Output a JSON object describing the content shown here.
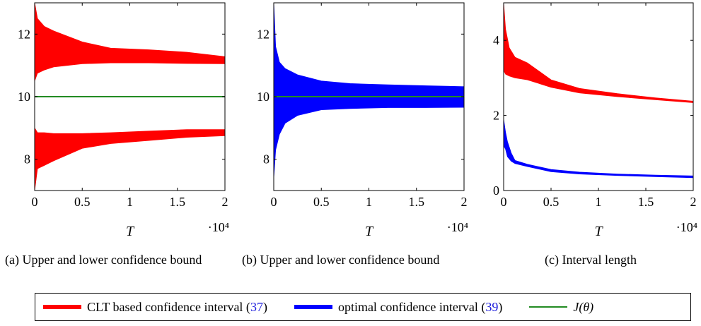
{
  "chart_data": [
    {
      "type": "area",
      "caption": "(a) Upper and lower confidence bound",
      "xlabel": "T",
      "x_multiplier": "·10⁴",
      "xlim": [
        0,
        20000
      ],
      "ylim": [
        7,
        13
      ],
      "xticks": [
        0,
        5000,
        10000,
        15000,
        20000
      ],
      "xtick_labels": [
        "0",
        "0.5",
        "1",
        "1.5",
        "2"
      ],
      "yticks": [
        8,
        10,
        12
      ],
      "ytick_labels": [
        "8",
        "10",
        "12"
      ],
      "series": [
        {
          "name": "CLT based confidence interval (37)",
          "role": "upper bound",
          "color": "#ff0000",
          "x": [
            0,
            300,
            1000,
            2000,
            5000,
            8000,
            12000,
            16000,
            20000
          ],
          "low": [
            10.5,
            10.75,
            10.85,
            10.95,
            11.05,
            11.08,
            11.08,
            11.06,
            11.05
          ],
          "high": [
            13.0,
            12.5,
            12.25,
            12.1,
            11.75,
            11.55,
            11.5,
            11.42,
            11.28
          ]
        },
        {
          "name": "CLT based confidence interval (37)",
          "role": "lower bound",
          "color": "#ff0000",
          "x": [
            0,
            300,
            1000,
            2000,
            5000,
            8000,
            12000,
            16000,
            20000
          ],
          "low": [
            7.0,
            7.7,
            7.8,
            7.95,
            8.35,
            8.5,
            8.6,
            8.7,
            8.75
          ],
          "high": [
            9.0,
            8.85,
            8.85,
            8.82,
            8.82,
            8.85,
            8.9,
            8.95,
            8.95
          ]
        },
        {
          "name": "J(θ)",
          "color": "#228b22",
          "x": [
            0,
            20000
          ],
          "y": [
            10,
            10
          ]
        }
      ]
    },
    {
      "type": "area",
      "caption": "(b) Upper and lower confidence bound",
      "xlabel": "T",
      "x_multiplier": "·10⁴",
      "xlim": [
        0,
        20000
      ],
      "ylim": [
        7,
        13
      ],
      "xticks": [
        0,
        5000,
        10000,
        15000,
        20000
      ],
      "xtick_labels": [
        "0",
        "0.5",
        "1",
        "1.5",
        "2"
      ],
      "yticks": [
        8,
        10,
        12
      ],
      "ytick_labels": [
        "8",
        "10",
        "12"
      ],
      "series": [
        {
          "name": "optimal confidence interval (39)",
          "color": "#0000ff",
          "x": [
            0,
            200,
            600,
            1200,
            2500,
            5000,
            8000,
            12000,
            16000,
            20000
          ],
          "low": [
            7.4,
            8.3,
            8.8,
            9.15,
            9.4,
            9.58,
            9.62,
            9.65,
            9.65,
            9.66
          ],
          "high": [
            13.0,
            11.6,
            11.1,
            10.9,
            10.7,
            10.5,
            10.42,
            10.38,
            10.35,
            10.32
          ]
        },
        {
          "name": "J(θ)",
          "color": "#228b22",
          "x": [
            0,
            20000
          ],
          "y": [
            10,
            10
          ]
        }
      ]
    },
    {
      "type": "area",
      "caption": "(c) Interval length",
      "xlabel": "T",
      "x_multiplier": "·10⁴",
      "xlim": [
        0,
        20000
      ],
      "ylim": [
        0,
        5
      ],
      "xticks": [
        0,
        5000,
        10000,
        15000,
        20000
      ],
      "xtick_labels": [
        "0",
        "0.5",
        "1",
        "1.5",
        "2"
      ],
      "yticks": [
        0,
        2,
        4
      ],
      "ytick_labels": [
        "0",
        "2",
        "4"
      ],
      "series": [
        {
          "name": "CLT based confidence interval (37)",
          "color": "#ff0000",
          "x": [
            0,
            200,
            600,
            1200,
            2500,
            5000,
            8000,
            12000,
            16000,
            20000
          ],
          "low": [
            3.2,
            3.1,
            3.05,
            3.0,
            2.95,
            2.75,
            2.6,
            2.5,
            2.42,
            2.34
          ],
          "high": [
            5.0,
            4.3,
            3.8,
            3.55,
            3.4,
            2.95,
            2.72,
            2.58,
            2.47,
            2.38
          ]
        },
        {
          "name": "optimal confidence interval (39)",
          "color": "#0000ff",
          "x": [
            0,
            200,
            400,
            800,
            1200,
            2500,
            5000,
            8000,
            12000,
            16000,
            20000
          ],
          "low": [
            1.2,
            1.1,
            0.9,
            0.78,
            0.72,
            0.64,
            0.5,
            0.44,
            0.4,
            0.37,
            0.34
          ],
          "high": [
            1.9,
            1.55,
            1.3,
            1.0,
            0.8,
            0.7,
            0.56,
            0.49,
            0.44,
            0.41,
            0.39
          ]
        }
      ]
    }
  ],
  "legend": [
    {
      "text": "CLT based confidence interval (",
      "ref": "37",
      "tail": ")",
      "color": "#ff0000"
    },
    {
      "text": "optimal confidence interval (",
      "ref": "39",
      "tail": ")",
      "color": "#0000ff"
    },
    {
      "text": "J(θ)",
      "ref": "",
      "tail": "",
      "color": "#228b22"
    }
  ]
}
